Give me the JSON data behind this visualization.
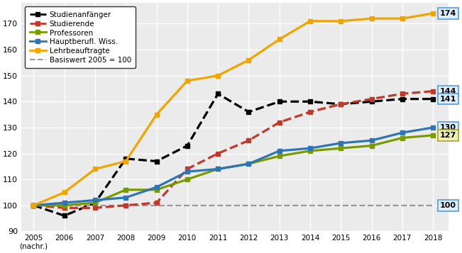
{
  "years": [
    2005,
    2006,
    2007,
    2008,
    2009,
    2010,
    2011,
    2012,
    2013,
    2014,
    2015,
    2016,
    2017,
    2018
  ],
  "studienanfaenger": [
    100,
    96,
    101,
    118,
    117,
    123,
    143,
    136,
    140,
    140,
    139,
    140,
    141,
    141
  ],
  "studierende": [
    100,
    99,
    99,
    100,
    101,
    114,
    120,
    125,
    132,
    136,
    139,
    141,
    143,
    144
  ],
  "professoren": [
    100,
    100,
    101,
    106,
    106,
    110,
    114,
    116,
    119,
    121,
    122,
    123,
    126,
    127
  ],
  "hauptberufl_wiss": [
    100,
    101,
    102,
    103,
    107,
    113,
    114,
    116,
    121,
    122,
    124,
    125,
    128,
    130
  ],
  "lehrbeauftragte": [
    100,
    105,
    114,
    117,
    135,
    148,
    150,
    156,
    164,
    171,
    171,
    172,
    172,
    174
  ],
  "basiswert": [
    100,
    100,
    100,
    100,
    100,
    100,
    100,
    100,
    100,
    100,
    100,
    100,
    100,
    100
  ],
  "color_studienanfaenger": "#000000",
  "color_studierende": "#c0392b",
  "color_professoren": "#7a9a01",
  "color_hauptberufl_wiss": "#2e75b6",
  "color_lehrbeauftragte": "#f0a500",
  "color_basiswert": "#999999",
  "plot_bg": "#ebebeb",
  "fig_bg": "#ffffff",
  "ylim": [
    90,
    178
  ],
  "yticks": [
    90,
    100,
    110,
    120,
    130,
    140,
    150,
    160,
    170
  ],
  "figsize": [
    6.51,
    3.57
  ],
  "dpi": 100
}
